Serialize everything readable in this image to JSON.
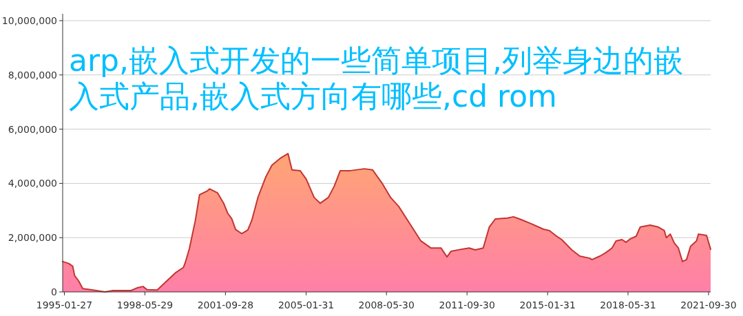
{
  "chart_data": {
    "type": "area",
    "title": "arp,嵌入式开发的一些简单项目,列举身边的嵌入式产品,嵌入式方向有哪些,cd rom",
    "x": [
      "1995-01",
      "1995-04",
      "1995-06",
      "1995-07",
      "1995-09",
      "1995-11",
      "1996-03",
      "1996-10",
      "1997-02",
      "1997-11",
      "1998-02",
      "1998-05",
      "1998-07",
      "1998-12",
      "1999-04",
      "1999-09",
      "2000-01",
      "2000-02",
      "2000-04",
      "2000-07",
      "2000-09",
      "2001-01",
      "2001-02",
      "2001-06",
      "2001-09",
      "2001-11",
      "2002-01",
      "2002-03",
      "2002-06",
      "2002-09",
      "2002-11",
      "2003-02",
      "2003-06",
      "2003-09",
      "2004-01",
      "2004-05",
      "2004-07",
      "2004-11",
      "2005-02",
      "2005-06",
      "2005-09",
      "2006-01",
      "2006-04",
      "2006-07",
      "2006-12",
      "2007-07",
      "2007-11",
      "2008-04",
      "2008-08",
      "2008-12",
      "2009-06",
      "2009-11",
      "2010-04",
      "2010-09",
      "2010-12",
      "2011-02",
      "2011-07",
      "2011-11",
      "2012-02",
      "2012-06",
      "2012-09",
      "2012-12",
      "2013-06",
      "2013-09",
      "2013-12",
      "2014-06",
      "2014-12",
      "2015-03",
      "2015-06",
      "2015-09",
      "2016-02",
      "2016-06",
      "2016-11",
      "2016-12",
      "2017-04",
      "2017-07",
      "2017-10",
      "2017-12",
      "2018-03",
      "2018-05",
      "2018-07",
      "2018-10",
      "2018-12",
      "2019-05",
      "2019-09",
      "2019-12",
      "2020-01",
      "2020-03",
      "2020-05",
      "2020-07",
      "2020-09",
      "2020-11",
      "2021-01",
      "2021-04",
      "2021-05",
      "2021-09",
      "2021-11"
    ],
    "series": [
      {
        "color": "#c23531",
        "values": [
          1120000,
          1050000,
          950000,
          600000,
          400000,
          120000,
          80000,
          0,
          50000,
          50000,
          150000,
          200000,
          80000,
          70000,
          350000,
          700000,
          900000,
          1100000,
          1600000,
          2650000,
          3580000,
          3730000,
          3800000,
          3650000,
          3270000,
          2900000,
          2700000,
          2300000,
          2150000,
          2280000,
          2640000,
          3480000,
          4240000,
          4670000,
          4920000,
          5100000,
          4500000,
          4470000,
          4160000,
          3480000,
          3270000,
          3480000,
          3900000,
          4470000,
          4470000,
          4540000,
          4500000,
          3980000,
          3480000,
          3150000,
          2460000,
          1880000,
          1620000,
          1620000,
          1290000,
          1500000,
          1570000,
          1620000,
          1550000,
          1620000,
          2390000,
          2690000,
          2720000,
          2770000,
          2690000,
          2510000,
          2310000,
          2260000,
          2080000,
          1930000,
          1550000,
          1320000,
          1240000,
          1190000,
          1320000,
          1450000,
          1620000,
          1880000,
          1930000,
          1830000,
          1950000,
          2050000,
          2390000,
          2460000,
          2390000,
          2260000,
          2000000,
          2130000,
          1800000,
          1620000,
          1120000,
          1190000,
          1680000,
          1880000,
          2130000,
          2080000,
          1570000
        ]
      }
    ],
    "xlim": [
      "1995-01",
      "2021-11"
    ],
    "xticks": [
      {
        "value": "1995-01-27",
        "label": "1995-01-27"
      },
      {
        "value": "1998-05-29",
        "label": "1998-05-29"
      },
      {
        "value": "2001-09-28",
        "label": "2001-09-28"
      },
      {
        "value": "2005-01-31",
        "label": "2005-01-31"
      },
      {
        "value": "2008-05-30",
        "label": "2008-05-30"
      },
      {
        "value": "2011-09-30",
        "label": "2011-09-30"
      },
      {
        "value": "2015-01-31",
        "label": "2015-01-31"
      },
      {
        "value": "2018-05-31",
        "label": "2018-05-31"
      },
      {
        "value": "2021-09-30",
        "label": "2021-09-30"
      }
    ],
    "ylim": [
      0,
      10000000
    ],
    "yticks": [
      0,
      {
        "value": 2000000,
        "label": "2,000,000"
      },
      {
        "value": 4000000,
        "label": "4,000,000"
      },
      {
        "value": 6000000,
        "label": "6,000,000"
      },
      {
        "value": 8000000,
        "label": "8,000,000"
      },
      {
        "value": 10000000,
        "label": "10,000,000"
      }
    ],
    "grid": "y"
  }
}
